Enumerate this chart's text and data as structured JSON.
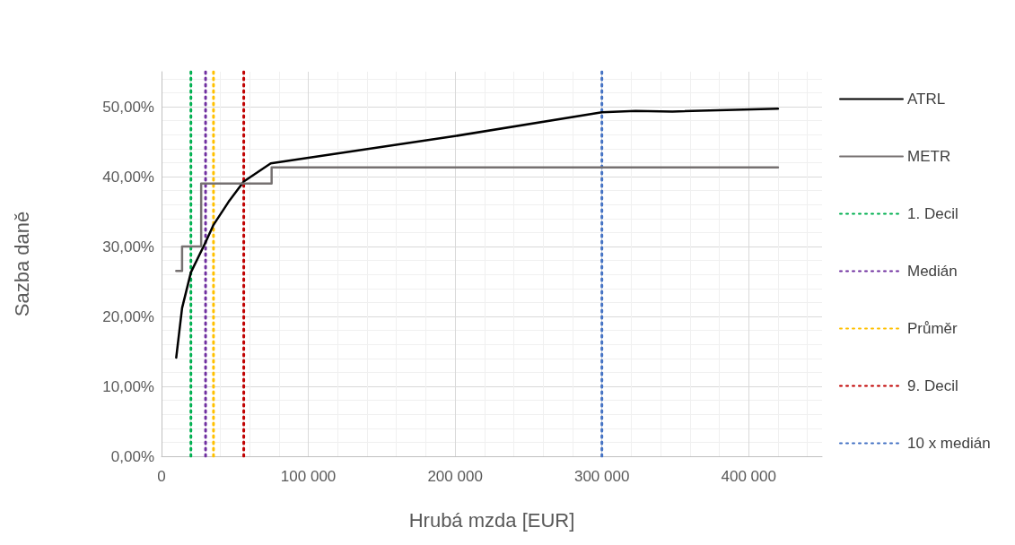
{
  "chart_data": {
    "type": "line",
    "xlabel": "Hrubá mzda [EUR]",
    "ylabel": "Sazba daně",
    "xlim": [
      0,
      450000
    ],
    "xticks": [
      {
        "value": 0,
        "label": "0"
      },
      {
        "value": 100000,
        "label": "100 000"
      },
      {
        "value": 200000,
        "label": "200 000"
      },
      {
        "value": 300000,
        "label": "300 000"
      },
      {
        "value": 400000,
        "label": "400 000"
      }
    ],
    "ylim": [
      0,
      55
    ],
    "yticks": [
      {
        "value": 0,
        "label": "0,00%"
      },
      {
        "value": 10,
        "label": "10,00%"
      },
      {
        "value": 20,
        "label": "20,00%"
      },
      {
        "value": 30,
        "label": "30,00%"
      },
      {
        "value": 40,
        "label": "40,00%"
      },
      {
        "value": 50,
        "label": "50,00%"
      }
    ],
    "grid": true,
    "legend": "right",
    "marker": "none",
    "series": [
      {
        "name": "ATRL",
        "color": "#000000",
        "line_style": "solid",
        "x": [
          10000,
          14000,
          20000,
          30000,
          35400,
          45700,
          56000,
          74400,
          200000,
          300000,
          323000,
          348000,
          420000
        ],
        "values": [
          14.1,
          21.2,
          26.3,
          30.6,
          33.1,
          36.4,
          39.3,
          41.9,
          45.8,
          49.2,
          49.4,
          49.3,
          49.7
        ]
      },
      {
        "name": "METR",
        "type": "step",
        "color": "#767171",
        "line_style": "solid",
        "x": [
          10000,
          14000,
          27000,
          75000,
          420000
        ],
        "values": [
          26.5,
          30,
          39,
          41.3,
          41.3
        ]
      },
      {
        "name": "1. Decil",
        "color": "#00b050",
        "line_style": "dotted",
        "x": [
          20000,
          20000
        ],
        "values": [
          0,
          55
        ]
      },
      {
        "name": "Medián",
        "color": "#7030a0",
        "line_style": "dotted",
        "x": [
          30000,
          30000
        ],
        "values": [
          0,
          55
        ]
      },
      {
        "name": "Průměr",
        "color": "#ffc000",
        "line_style": "dotted",
        "x": [
          35400,
          35400
        ],
        "values": [
          0,
          55
        ]
      },
      {
        "name": "9. Decil",
        "color": "#c00000",
        "line_style": "dotted",
        "x": [
          56000,
          56000
        ],
        "values": [
          0,
          55
        ]
      },
      {
        "name": "10 x medián",
        "color": "#4472c4",
        "line_style": "dotted",
        "x": [
          300000,
          300000
        ],
        "values": [
          0,
          55
        ]
      }
    ]
  }
}
